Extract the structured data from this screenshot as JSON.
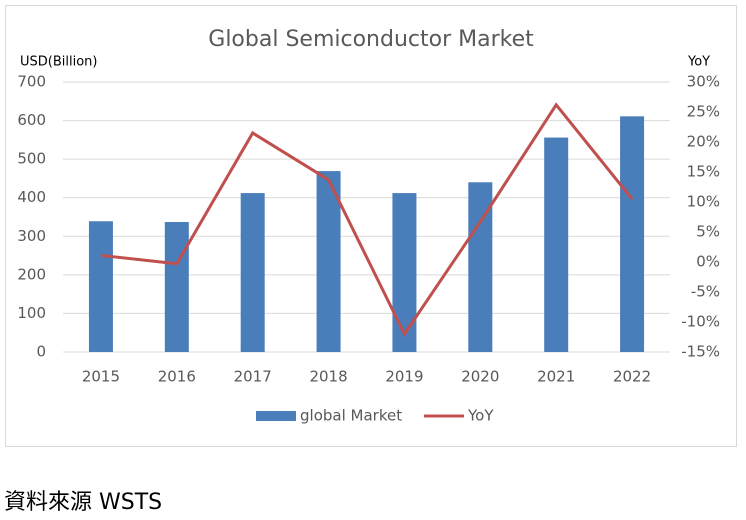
{
  "chart_data": {
    "type": "combo",
    "title": "Global Semiconductor Market",
    "y_label": "USD(Billion)",
    "y2_label": "YoY",
    "categories": [
      "2015",
      "2016",
      "2017",
      "2018",
      "2019",
      "2020",
      "2021",
      "2022"
    ],
    "series": [
      {
        "name": "global Market",
        "type": "bar",
        "axis": "y",
        "color": "#4a7ebb",
        "values": [
          339,
          337,
          412,
          469,
          412,
          440,
          556,
          611
        ]
      },
      {
        "name": "YoY",
        "type": "line",
        "axis": "y2",
        "color": "#c0504d",
        "values": [
          1.1,
          -0.3,
          21.5,
          13.7,
          -12,
          6.7,
          26.2,
          10.5
        ]
      }
    ],
    "ylim": [
      0,
      700
    ],
    "yticks": [
      0,
      100,
      200,
      300,
      400,
      500,
      600,
      700
    ],
    "y2lim": [
      -15,
      30
    ],
    "y2ticks": [
      {
        "value": -15,
        "label": "-15%"
      },
      {
        "value": -10,
        "label": "-10%"
      },
      {
        "value": -5,
        "label": "-5%"
      },
      {
        "value": 0,
        "label": "0%"
      },
      {
        "value": 5,
        "label": "5%"
      },
      {
        "value": 10,
        "label": "10%"
      },
      {
        "value": 15,
        "label": "15%"
      },
      {
        "value": 20,
        "label": "20%"
      },
      {
        "value": 25,
        "label": "25%"
      },
      {
        "value": 30,
        "label": "30%"
      }
    ],
    "grid": true,
    "legend": "bottom"
  },
  "source": "資料來源 WSTS"
}
